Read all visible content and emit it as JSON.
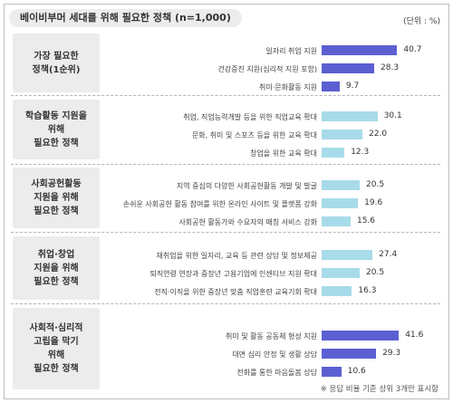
{
  "title": "베이비부머 세대를 위해 필요한 정책 (n=1,000)",
  "unit": "(단위 : %)",
  "footnote": "※ 응답 비율 기준 상위 3개만 표시함",
  "colors": {
    "dark": "#5b5fd2",
    "light": "#a8dbe9",
    "panel": "#ececec"
  },
  "chart_data": {
    "type": "bar",
    "orientation": "horizontal",
    "title": "베이비부머 세대를 위해 필요한 정책 (n=1,000)",
    "unit": "%",
    "groups": [
      {
        "label": "가장 필요한\n정책(1순위)",
        "color": "dark",
        "items": [
          {
            "label": "일자리 취업 지원",
            "value": 40.7
          },
          {
            "label": "건강증진 지원(심리적 지원 포함)",
            "value": 28.3
          },
          {
            "label": "취미·문화활동 지원",
            "value": 9.7
          }
        ]
      },
      {
        "label": "학습활동 지원을\n위해\n필요한 정책",
        "color": "light",
        "items": [
          {
            "label": "취업, 직업능력개발 등을 위한 직업교육 확대",
            "value": 30.1
          },
          {
            "label": "문화, 취미 및 스포츠 등을 위한 교육 확대",
            "value": 22.0
          },
          {
            "label": "창업을 위한 교육 확대",
            "value": 12.3
          }
        ]
      },
      {
        "label": "사회공헌활동\n지원을 위해\n필요한 정책",
        "color": "light",
        "items": [
          {
            "label": "지역 중심의 다양한 사회공헌활동 개발 및 발굴",
            "value": 20.5
          },
          {
            "label": "손쉬운 사회공헌 활동 참여를 위한 온라인 사이트 및 플랫폼 강화",
            "value": 19.6
          },
          {
            "label": "사회공헌 활동가와 수요자의 매칭 서비스 강화",
            "value": 15.6
          }
        ]
      },
      {
        "label": "취업·창업\n지원을 위해\n필요한 정책",
        "color": "light",
        "items": [
          {
            "label": "재취업을 위한 일자리, 교육 등 관련 상담 및 정보제공",
            "value": 27.4
          },
          {
            "label": "퇴직연령 연장과 중장년 고용기업에 인센티브 지원 확대",
            "value": 20.5
          },
          {
            "label": "전직·이직을 위한 중장년 맞춤 직업훈련 교육기회 확대",
            "value": 16.3
          }
        ]
      },
      {
        "label": "사회적·심리적\n고립을 막기\n위해\n필요한 정책",
        "color": "dark",
        "items": [
          {
            "label": "취미 및 활동 공동체 형성 지원",
            "value": 41.6
          },
          {
            "label": "대면 심리 안정 및 생활 상담",
            "value": 29.3
          },
          {
            "label": "전화를 통한 마음돌봄 상담",
            "value": 10.6
          }
        ]
      }
    ]
  }
}
